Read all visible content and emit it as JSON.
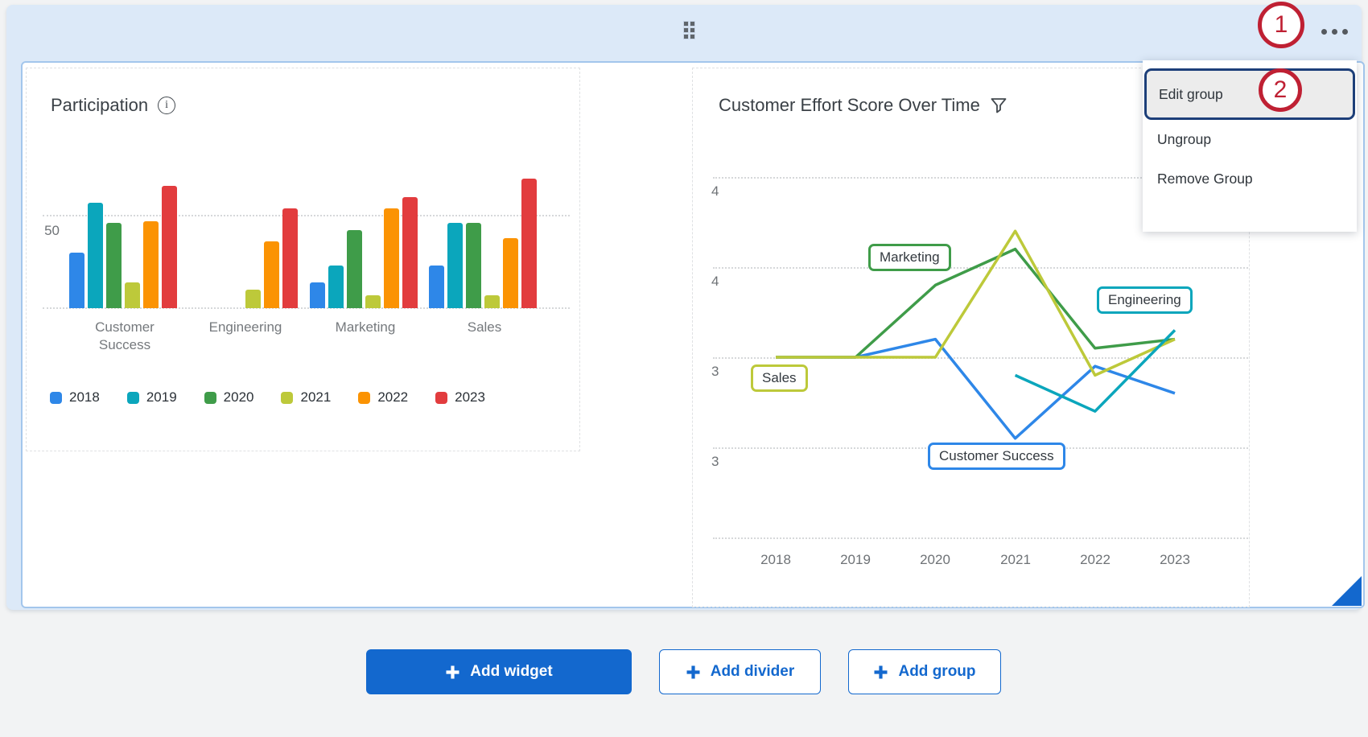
{
  "menu": {
    "items": [
      {
        "label": "Edit group",
        "highlighted": true
      },
      {
        "label": "Ungroup",
        "highlighted": false
      },
      {
        "label": "Remove Group",
        "highlighted": false
      }
    ]
  },
  "annotations": {
    "step1": "1",
    "step2": "2"
  },
  "colors": {
    "accent_blue": "#1368ce",
    "annotation_red": "#bf2033",
    "group_background": "#dce9f8",
    "series_2018_blue": "#2e87e8",
    "series_2019_teal": "#0ba6bc",
    "series_2020_green": "#3f9c49",
    "series_2021_yellow": "#bdc93a",
    "series_2022_orange": "#fb9303",
    "series_2023_red": "#e23c3e"
  },
  "chart_data": [
    {
      "type": "bar",
      "title": "Participation",
      "categories": [
        "Customer Success",
        "Engineering",
        "Marketing",
        "Sales"
      ],
      "series": [
        {
          "name": "2018",
          "color": "#2e87e8",
          "values": [
            30,
            null,
            14,
            23
          ]
        },
        {
          "name": "2019",
          "color": "#0ba6bc",
          "values": [
            57,
            null,
            23,
            46
          ]
        },
        {
          "name": "2020",
          "color": "#3f9c49",
          "values": [
            46,
            null,
            42,
            46
          ]
        },
        {
          "name": "2021",
          "color": "#bdc93a",
          "values": [
            14,
            10,
            7,
            7
          ]
        },
        {
          "name": "2022",
          "color": "#fb9303",
          "values": [
            47,
            36,
            54,
            38
          ]
        },
        {
          "name": "2023",
          "color": "#e23c3e",
          "values": [
            66,
            54,
            60,
            70
          ]
        }
      ],
      "y_tick_labels": [
        "50"
      ],
      "ylim": [
        0,
        75
      ],
      "grid": "dotted horizontal at 0 and 50",
      "legend_position": "bottom"
    },
    {
      "type": "line",
      "title": "Customer Effort Score Over Time",
      "x": [
        "2018",
        "2019",
        "2020",
        "2021",
        "2022",
        "2023"
      ],
      "series": [
        {
          "name": "Customer Success",
          "color": "#2e87e8",
          "values": [
            3.5,
            3.5,
            3.6,
            3.05,
            3.45,
            3.3
          ]
        },
        {
          "name": "Marketing",
          "color": "#3f9c49",
          "values": [
            3.5,
            3.5,
            3.9,
            4.1,
            3.55,
            3.6
          ]
        },
        {
          "name": "Sales",
          "color": "#bdc93a",
          "values": [
            3.5,
            3.5,
            3.5,
            4.2,
            3.4,
            3.6
          ]
        },
        {
          "name": "Engineering",
          "color": "#0ba6bc",
          "values": [
            null,
            null,
            null,
            3.4,
            3.2,
            3.65
          ]
        }
      ],
      "y_tick_labels": [
        "4",
        "4",
        "3",
        "3"
      ],
      "y_gridline_values": [
        4.5,
        4.0,
        3.5,
        3.0,
        2.5
      ],
      "ylim": [
        2.5,
        4.75
      ],
      "grid": "dotted horizontal",
      "legend_position": "inline-labels"
    }
  ],
  "footer": {
    "buttons": [
      {
        "label": "Add widget",
        "variant": "primary"
      },
      {
        "label": "Add divider",
        "variant": "outline"
      },
      {
        "label": "Add group",
        "variant": "outline"
      }
    ]
  }
}
